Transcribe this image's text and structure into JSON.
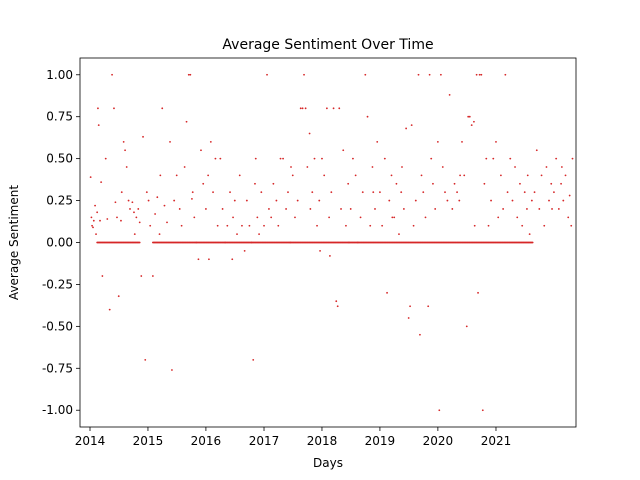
{
  "chart_data": {
    "type": "scatter",
    "title": "Average Sentiment Over Time",
    "xlabel": "Days",
    "ylabel": "Average Sentiment",
    "xlim": [
      "2013-10-30",
      "2022-05-20"
    ],
    "ylim": [
      -1.1,
      1.1
    ],
    "x_ticks": [
      "2014",
      "2015",
      "2016",
      "2017",
      "2018",
      "2019",
      "2020",
      "2021"
    ],
    "y_ticks": [
      "-1.00",
      "-0.75",
      "-0.50",
      "-0.25",
      "0.00",
      "0.25",
      "0.50",
      "0.75",
      "1.00"
    ],
    "grid": false,
    "legend": "none",
    "marker_color": "#d62728",
    "series": [
      {
        "points": [
          [
            "2014-01-05",
            0.39
          ],
          [
            "2014-01-10",
            0.15
          ],
          [
            "2014-01-14",
            0.1
          ],
          [
            "2014-01-20",
            0.09
          ],
          [
            "2014-01-25",
            0.13
          ],
          [
            "2014-02-02",
            0.22
          ],
          [
            "2014-02-08",
            0.05
          ],
          [
            "2014-02-15",
            0.18
          ],
          [
            "2014-02-20",
            0.8
          ],
          [
            "2014-02-25",
            0.7
          ],
          [
            "2014-03-05",
            0.13
          ],
          [
            "2014-03-12",
            0.36
          ],
          [
            "2014-03-20",
            -0.2
          ],
          [
            "2014-04-10",
            0.5
          ],
          [
            "2014-04-20",
            0.14
          ],
          [
            "2014-05-05",
            -0.4
          ],
          [
            "2014-05-20",
            1.0
          ],
          [
            "2014-06-01",
            0.8
          ],
          [
            "2014-06-10",
            0.24
          ],
          [
            "2014-06-20",
            0.15
          ],
          [
            "2014-07-01",
            -0.32
          ],
          [
            "2014-07-15",
            0.13
          ],
          [
            "2014-08-01",
            0.6
          ],
          [
            "2014-08-10",
            0.55
          ],
          [
            "2014-08-20",
            0.45
          ],
          [
            "2014-09-01",
            0.25
          ],
          [
            "2014-09-10",
            0.2
          ],
          [
            "2014-09-25",
            0.24
          ],
          [
            "2014-10-05",
            0.18
          ],
          [
            "2014-10-20",
            0.15
          ],
          [
            "2014-11-01",
            0.2
          ],
          [
            "2014-11-10",
            0.12
          ],
          [
            "2014-11-20",
            -0.2
          ],
          [
            "2014-12-01",
            0.63
          ],
          [
            "2014-12-15",
            -0.7
          ],
          [
            "2014-12-25",
            0.3
          ],
          [
            "2015-01-05",
            0.25
          ],
          [
            "2015-01-15",
            0.1
          ],
          [
            "2015-02-01",
            -0.2
          ],
          [
            "2015-02-15",
            0.17
          ],
          [
            "2015-03-01",
            0.27
          ],
          [
            "2015-03-15",
            0.05
          ],
          [
            "2015-04-01",
            0.8
          ],
          [
            "2015-04-15",
            0.22
          ],
          [
            "2015-05-01",
            0.12
          ],
          [
            "2015-05-20",
            0.6
          ],
          [
            "2015-06-01",
            -0.76
          ],
          [
            "2015-06-15",
            0.25
          ],
          [
            "2015-07-01",
            0.4
          ],
          [
            "2015-07-20",
            0.2
          ],
          [
            "2015-08-01",
            0.1
          ],
          [
            "2015-08-20",
            0.45
          ],
          [
            "2015-09-01",
            0.72
          ],
          [
            "2015-09-15",
            1.0
          ],
          [
            "2015-09-25",
            1.0
          ],
          [
            "2015-10-05",
            0.26
          ],
          [
            "2015-10-20",
            0.15
          ],
          [
            "2015-11-01",
            0.0
          ],
          [
            "2015-11-15",
            -0.1
          ],
          [
            "2015-12-01",
            0.55
          ],
          [
            "2015-12-15",
            0.35
          ],
          [
            "2016-01-01",
            0.2
          ],
          [
            "2016-01-15",
            0.4
          ],
          [
            "2016-02-01",
            0.6
          ],
          [
            "2016-02-15",
            0.3
          ],
          [
            "2016-03-01",
            0.5
          ],
          [
            "2016-03-15",
            0.1
          ],
          [
            "2016-04-01",
            0.5
          ],
          [
            "2016-04-15",
            0.2
          ],
          [
            "2016-05-01",
            0.0
          ],
          [
            "2016-05-15",
            0.1
          ],
          [
            "2016-06-01",
            0.3
          ],
          [
            "2016-06-15",
            -0.1
          ],
          [
            "2016-07-01",
            0.25
          ],
          [
            "2016-07-15",
            0.05
          ],
          [
            "2016-08-01",
            0.4
          ],
          [
            "2016-08-15",
            0.1
          ],
          [
            "2016-09-01",
            -0.05
          ],
          [
            "2016-09-15",
            0.25
          ],
          [
            "2016-10-01",
            0.1
          ],
          [
            "2016-10-15",
            0.0
          ],
          [
            "2016-10-25",
            -0.7
          ],
          [
            "2016-11-05",
            0.35
          ],
          [
            "2016-11-20",
            0.15
          ],
          [
            "2016-12-01",
            0.05
          ],
          [
            "2016-12-15",
            0.3
          ],
          [
            "2017-01-01",
            0.1
          ],
          [
            "2017-01-20",
            1.0
          ],
          [
            "2017-02-01",
            0.2
          ],
          [
            "2017-02-15",
            0.15
          ],
          [
            "2017-03-01",
            0.35
          ],
          [
            "2017-03-20",
            0.25
          ],
          [
            "2017-04-01",
            0.1
          ],
          [
            "2017-04-15",
            0.5
          ],
          [
            "2017-05-01",
            0.5
          ],
          [
            "2017-05-20",
            0.2
          ],
          [
            "2017-06-01",
            0.3
          ],
          [
            "2017-06-15",
            0.0
          ],
          [
            "2017-07-01",
            0.4
          ],
          [
            "2017-07-15",
            0.15
          ],
          [
            "2017-08-01",
            0.25
          ],
          [
            "2017-08-20",
            0.8
          ],
          [
            "2017-09-01",
            0.8
          ],
          [
            "2017-09-10",
            1.0
          ],
          [
            "2017-09-20",
            0.8
          ],
          [
            "2017-10-01",
            0.45
          ],
          [
            "2017-10-15",
            0.65
          ],
          [
            "2017-11-01",
            0.3
          ],
          [
            "2017-11-15",
            0.5
          ],
          [
            "2017-12-01",
            0.1
          ],
          [
            "2017-12-15",
            0.25
          ],
          [
            "2018-01-01",
            0.5
          ],
          [
            "2018-01-15",
            0.4
          ],
          [
            "2018-02-01",
            0.8
          ],
          [
            "2018-02-15",
            0.15
          ],
          [
            "2018-03-01",
            0.3
          ],
          [
            "2018-03-15",
            0.8
          ],
          [
            "2018-04-01",
            -0.35
          ],
          [
            "2018-04-10",
            -0.38
          ],
          [
            "2018-04-20",
            0.8
          ],
          [
            "2018-05-01",
            0.2
          ],
          [
            "2018-05-15",
            0.55
          ],
          [
            "2018-06-01",
            0.1
          ],
          [
            "2018-06-15",
            0.35
          ],
          [
            "2018-07-01",
            0.2
          ],
          [
            "2018-07-15",
            0.5
          ],
          [
            "2018-08-01",
            0.4
          ],
          [
            "2018-08-15",
            0.0
          ],
          [
            "2018-09-01",
            0.15
          ],
          [
            "2018-09-15",
            0.3
          ],
          [
            "2018-10-01",
            1.0
          ],
          [
            "2018-10-15",
            0.75
          ],
          [
            "2018-11-01",
            0.1
          ],
          [
            "2018-11-15",
            0.45
          ],
          [
            "2018-12-01",
            0.2
          ],
          [
            "2018-12-15",
            0.6
          ],
          [
            "2019-01-01",
            0.3
          ],
          [
            "2019-01-15",
            0.1
          ],
          [
            "2019-02-01",
            0.5
          ],
          [
            "2019-02-15",
            -0.3
          ],
          [
            "2019-03-01",
            0.25
          ],
          [
            "2019-03-15",
            0.4
          ],
          [
            "2019-04-01",
            0.15
          ],
          [
            "2019-04-15",
            0.35
          ],
          [
            "2019-05-01",
            0.05
          ],
          [
            "2019-05-15",
            0.3
          ],
          [
            "2019-06-01",
            0.2
          ],
          [
            "2019-06-15",
            0.68
          ],
          [
            "2019-07-01",
            -0.45
          ],
          [
            "2019-07-10",
            -0.38
          ],
          [
            "2019-07-20",
            0.7
          ],
          [
            "2019-08-01",
            0.1
          ],
          [
            "2019-08-15",
            0.25
          ],
          [
            "2019-09-01",
            1.0
          ],
          [
            "2019-09-10",
            -0.55
          ],
          [
            "2019-09-20",
            0.4
          ],
          [
            "2019-10-01",
            0.3
          ],
          [
            "2019-10-15",
            0.15
          ],
          [
            "2019-11-01",
            -0.38
          ],
          [
            "2019-11-10",
            1.0
          ],
          [
            "2019-11-20",
            0.5
          ],
          [
            "2019-12-01",
            0.35
          ],
          [
            "2019-12-15",
            0.2
          ],
          [
            "2020-01-01",
            0.6
          ],
          [
            "2020-01-10",
            -1.0
          ],
          [
            "2020-01-20",
            1.0
          ],
          [
            "2020-02-01",
            0.45
          ],
          [
            "2020-02-15",
            0.3
          ],
          [
            "2020-03-01",
            0.25
          ],
          [
            "2020-03-15",
            0.88
          ],
          [
            "2020-04-01",
            0.2
          ],
          [
            "2020-04-15",
            0.35
          ],
          [
            "2020-05-01",
            0.3
          ],
          [
            "2020-05-15",
            0.25
          ],
          [
            "2020-06-01",
            0.6
          ],
          [
            "2020-06-15",
            0.4
          ],
          [
            "2020-07-01",
            -0.5
          ],
          [
            "2020-07-10",
            0.75
          ],
          [
            "2020-07-20",
            0.75
          ],
          [
            "2020-08-01",
            0.7
          ],
          [
            "2020-08-15",
            0.72
          ],
          [
            "2020-09-01",
            1.0
          ],
          [
            "2020-09-10",
            -0.3
          ],
          [
            "2020-09-20",
            1.0
          ],
          [
            "2020-10-01",
            1.0
          ],
          [
            "2020-10-10",
            -1.0
          ],
          [
            "2020-10-20",
            0.35
          ],
          [
            "2020-11-01",
            0.5
          ],
          [
            "2020-11-15",
            0.1
          ],
          [
            "2020-12-01",
            0.25
          ],
          [
            "2020-12-15",
            0.5
          ],
          [
            "2021-01-01",
            0.6
          ],
          [
            "2021-01-15",
            0.15
          ],
          [
            "2021-02-01",
            0.4
          ],
          [
            "2021-02-15",
            0.2
          ],
          [
            "2021-03-01",
            1.0
          ],
          [
            "2021-03-15",
            0.3
          ],
          [
            "2021-04-01",
            0.5
          ],
          [
            "2021-04-15",
            0.25
          ],
          [
            "2021-05-01",
            0.45
          ],
          [
            "2021-05-15",
            0.15
          ],
          [
            "2021-06-01",
            0.35
          ],
          [
            "2021-06-15",
            0.1
          ],
          [
            "2021-07-01",
            0.3
          ],
          [
            "2021-07-15",
            0.2
          ],
          [
            "2021-08-01",
            0.05
          ],
          [
            "2021-08-15",
            0.25
          ],
          [
            "2021-09-01",
            0.3
          ],
          [
            "2021-09-15",
            0.55
          ],
          [
            "2021-10-01",
            0.2
          ],
          [
            "2021-10-15",
            0.4
          ],
          [
            "2021-11-01",
            0.1
          ],
          [
            "2021-11-15",
            0.45
          ],
          [
            "2021-12-01",
            0.25
          ],
          [
            "2021-12-15",
            0.35
          ],
          [
            "2022-01-01",
            0.3
          ],
          [
            "2022-01-15",
            0.5
          ],
          [
            "2022-02-01",
            0.2
          ],
          [
            "2022-02-15",
            0.35
          ],
          [
            "2022-03-01",
            0.25
          ],
          [
            "2022-03-15",
            0.4
          ],
          [
            "2022-04-01",
            0.15
          ],
          [
            "2022-04-10",
            0.28
          ],
          [
            "2022-04-20",
            0.1
          ],
          [
            "2022-04-28",
            0.5
          ],
          [
            "2014-07-20",
            0.3
          ],
          [
            "2014-10-10",
            0.05
          ],
          [
            "2015-03-20",
            0.4
          ],
          [
            "2015-10-10",
            0.3
          ],
          [
            "2016-06-20",
            0.15
          ],
          [
            "2016-11-10",
            0.5
          ],
          [
            "2017-06-20",
            0.45
          ],
          [
            "2017-10-20",
            0.2
          ],
          [
            "2018-06-20",
            0.0
          ],
          [
            "2018-11-20",
            0.3
          ],
          [
            "2019-03-20",
            0.15
          ],
          [
            "2019-05-20",
            0.45
          ],
          [
            "2020-05-20",
            0.4
          ],
          [
            "2020-08-20",
            0.1
          ],
          [
            "2021-07-20",
            0.4
          ],
          [
            "2021-12-20",
            0.2
          ],
          [
            "2022-02-20",
            0.45
          ],
          [
            "2017-12-20",
            -0.05
          ],
          [
            "2018-02-20",
            -0.08
          ],
          [
            "2016-01-20",
            -0.1
          ]
        ],
        "zero_band": [
          [
            "2014-02-15",
            "2014-11-10"
          ],
          [
            "2015-02-01",
            "2021-08-20"
          ]
        ]
      }
    ]
  }
}
